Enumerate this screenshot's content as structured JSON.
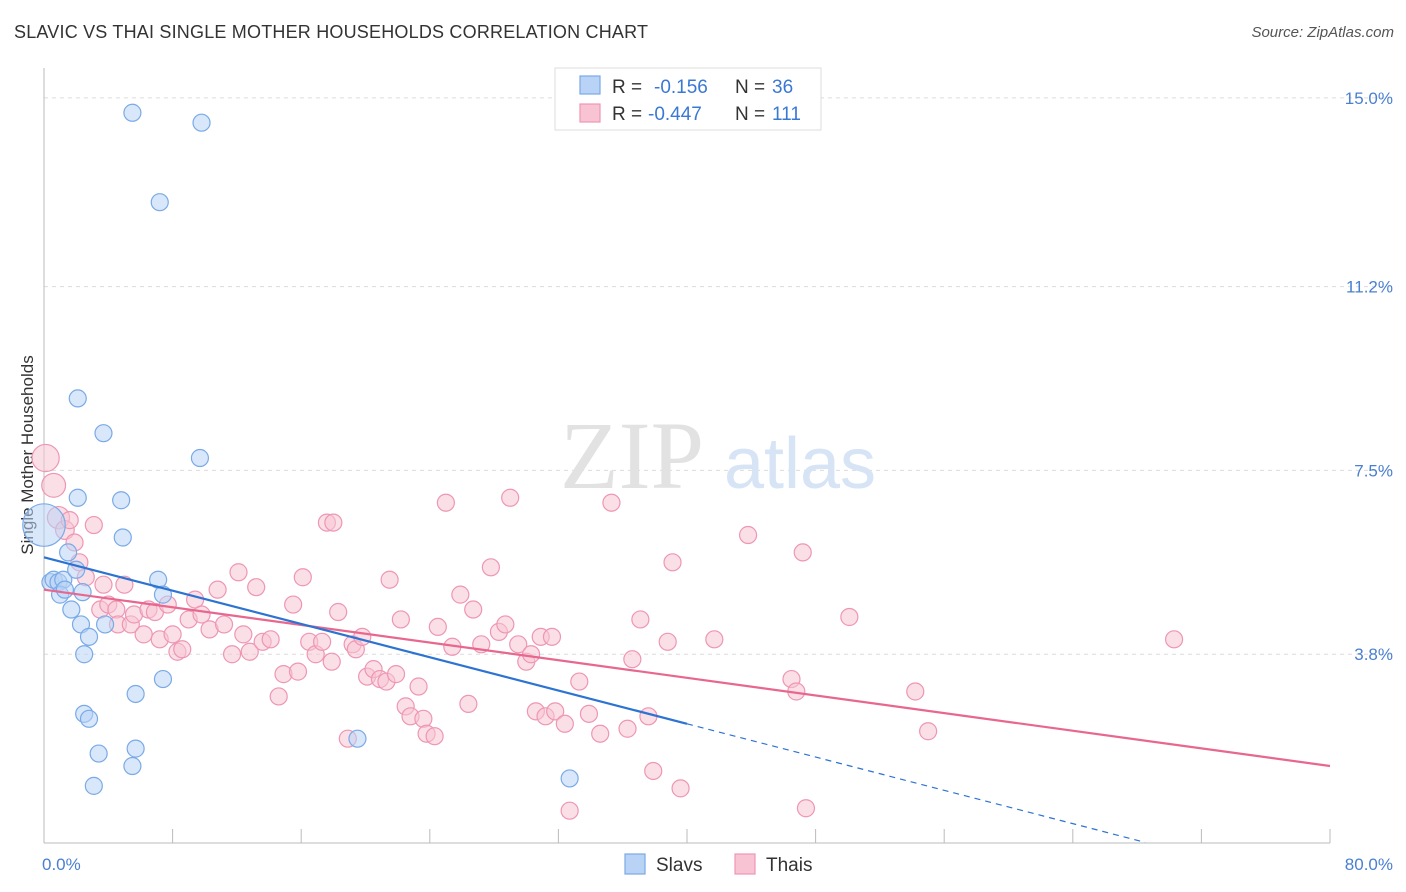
{
  "title": "SLAVIC VS THAI SINGLE MOTHER HOUSEHOLDS CORRELATION CHART",
  "source": "Source: ZipAtlas.com",
  "watermark": {
    "zip": "ZIP",
    "atlas": "atlas"
  },
  "colors": {
    "slavs_fill": "#b8d3f5",
    "slavs_stroke": "#7aaae6",
    "slavs_line": "#2c73d2",
    "thais_fill": "#f8c4d4",
    "thais_stroke": "#ee96b3",
    "thais_line": "#e8678f",
    "tick_text": "#4a80d0",
    "grid": "#dcdcdc"
  },
  "legend": {
    "r_label": "R =",
    "n_label": "N =",
    "rows": [
      {
        "r": "-0.156",
        "n": "36"
      },
      {
        "r": "-0.447",
        "n": "111"
      }
    ]
  },
  "bottom_legend": [
    "Slavs",
    "Thais"
  ],
  "chart_data": {
    "type": "scatter",
    "title": "SLAVIC VS THAI SINGLE MOTHER HOUSEHOLDS CORRELATION CHART",
    "xlabel": "",
    "ylabel": "Single Mother Households",
    "xlim": [
      0,
      80
    ],
    "ylim": [
      0,
      15.4
    ],
    "x_tick_labels": [
      "0.0%",
      "80.0%"
    ],
    "y_ticks": [
      3.8,
      7.5,
      11.2,
      15.0
    ],
    "y_tick_labels": [
      "3.8%",
      "7.5%",
      "11.2%",
      "15.0%"
    ],
    "grid": true,
    "legend_position": "top-center",
    "series": [
      {
        "name": "Slavs",
        "r": -0.156,
        "n": 36,
        "trend": {
          "x0": 0,
          "y0": 5.75,
          "x1": 40,
          "y1": 2.4,
          "dashed_to_x": 68.5
        },
        "points": [
          [
            0,
            6.4,
            2.5
          ],
          [
            0.4,
            5.25,
            1
          ],
          [
            0.6,
            5.3,
            1
          ],
          [
            0.9,
            5.25,
            1
          ],
          [
            1.2,
            5.3,
            1
          ],
          [
            1.0,
            5.0,
            1
          ],
          [
            1.3,
            5.1,
            1
          ],
          [
            1.5,
            5.85,
            1
          ],
          [
            1.7,
            4.7,
            1
          ],
          [
            2.0,
            5.5,
            1
          ],
          [
            2.4,
            5.05,
            1
          ],
          [
            2.1,
            6.95,
            1
          ],
          [
            2.1,
            8.95,
            1
          ],
          [
            3.7,
            8.25,
            1
          ],
          [
            4.8,
            6.9,
            1
          ],
          [
            4.9,
            6.15,
            1
          ],
          [
            2.3,
            4.4,
            1
          ],
          [
            2.5,
            3.8,
            1
          ],
          [
            2.8,
            4.15,
            1
          ],
          [
            3.8,
            4.4,
            1
          ],
          [
            5.5,
            14.7,
            1
          ],
          [
            9.8,
            14.5,
            1
          ],
          [
            7.2,
            12.9,
            1
          ],
          [
            9.7,
            7.75,
            1
          ],
          [
            7.1,
            5.3,
            1
          ],
          [
            7.4,
            5.0,
            1
          ],
          [
            7.4,
            3.3,
            1
          ],
          [
            5.7,
            3.0,
            1
          ],
          [
            2.5,
            2.6,
            1
          ],
          [
            2.8,
            2.5,
            1
          ],
          [
            3.4,
            1.8,
            1
          ],
          [
            5.7,
            1.9,
            1
          ],
          [
            5.5,
            1.55,
            1
          ],
          [
            3.1,
            1.15,
            1
          ],
          [
            19.5,
            2.1,
            1
          ],
          [
            32.7,
            1.3,
            1
          ]
        ]
      },
      {
        "name": "Thais",
        "r": -0.447,
        "n": 111,
        "trend": {
          "x0": 0,
          "y0": 5.1,
          "x1": 80,
          "y1": 1.55
        },
        "points": [
          [
            0.1,
            7.75,
            1.6
          ],
          [
            0.6,
            7.2,
            1.4
          ],
          [
            0.9,
            6.55,
            1.3
          ],
          [
            1.3,
            6.3,
            1.1
          ],
          [
            1.6,
            6.5,
            1
          ],
          [
            1.9,
            6.05,
            1
          ],
          [
            2.2,
            5.65,
            1
          ],
          [
            2.6,
            5.35,
            1
          ],
          [
            3.1,
            6.4,
            1
          ],
          [
            3.5,
            4.7,
            1
          ],
          [
            3.7,
            5.2,
            1
          ],
          [
            4.0,
            4.8,
            1
          ],
          [
            4.5,
            4.7,
            1
          ],
          [
            4.6,
            4.4,
            1
          ],
          [
            5.0,
            5.2,
            1
          ],
          [
            5.4,
            4.4,
            1
          ],
          [
            5.6,
            4.6,
            1
          ],
          [
            6.2,
            4.2,
            1
          ],
          [
            6.5,
            4.7,
            1
          ],
          [
            6.9,
            4.65,
            1
          ],
          [
            7.2,
            4.1,
            1
          ],
          [
            7.7,
            4.8,
            1
          ],
          [
            8.0,
            4.2,
            1
          ],
          [
            8.3,
            3.85,
            1
          ],
          [
            8.6,
            3.9,
            1
          ],
          [
            9.0,
            4.5,
            1
          ],
          [
            9.4,
            4.9,
            1
          ],
          [
            9.8,
            4.6,
            1
          ],
          [
            10.3,
            4.3,
            1
          ],
          [
            10.8,
            5.1,
            1
          ],
          [
            11.2,
            4.4,
            1
          ],
          [
            11.7,
            3.8,
            1
          ],
          [
            12.1,
            5.45,
            1
          ],
          [
            12.4,
            4.2,
            1
          ],
          [
            12.8,
            3.85,
            1
          ],
          [
            13.2,
            5.15,
            1
          ],
          [
            13.6,
            4.05,
            1
          ],
          [
            14.1,
            4.1,
            1
          ],
          [
            14.6,
            2.95,
            1
          ],
          [
            14.9,
            3.4,
            1
          ],
          [
            15.5,
            4.8,
            1
          ],
          [
            15.8,
            3.45,
            1
          ],
          [
            16.1,
            5.35,
            1
          ],
          [
            16.5,
            4.05,
            1
          ],
          [
            16.9,
            3.8,
            1
          ],
          [
            17.3,
            4.05,
            1
          ],
          [
            17.6,
            6.45,
            1
          ],
          [
            18.0,
            6.45,
            1
          ],
          [
            17.9,
            3.65,
            1
          ],
          [
            18.3,
            4.65,
            1
          ],
          [
            18.9,
            2.1,
            1
          ],
          [
            19.2,
            4.0,
            1
          ],
          [
            19.4,
            3.9,
            1
          ],
          [
            19.8,
            4.15,
            1
          ],
          [
            20.1,
            3.35,
            1
          ],
          [
            20.5,
            3.5,
            1
          ],
          [
            20.9,
            3.3,
            1
          ],
          [
            21.3,
            3.25,
            1
          ],
          [
            21.5,
            5.3,
            1
          ],
          [
            21.9,
            3.4,
            1
          ],
          [
            22.2,
            4.5,
            1
          ],
          [
            22.5,
            2.75,
            1
          ],
          [
            22.8,
            2.55,
            1
          ],
          [
            23.3,
            3.15,
            1
          ],
          [
            23.6,
            2.5,
            1
          ],
          [
            23.8,
            2.2,
            1
          ],
          [
            24.3,
            2.15,
            1
          ],
          [
            24.5,
            4.35,
            1
          ],
          [
            25.0,
            6.85,
            1
          ],
          [
            25.4,
            3.95,
            1
          ],
          [
            25.9,
            5.0,
            1
          ],
          [
            26.4,
            2.8,
            1
          ],
          [
            26.7,
            4.7,
            1
          ],
          [
            27.2,
            4.0,
            1
          ],
          [
            27.8,
            5.55,
            1
          ],
          [
            28.3,
            4.25,
            1
          ],
          [
            28.7,
            4.4,
            1
          ],
          [
            29.0,
            6.95,
            1
          ],
          [
            29.5,
            4.0,
            1
          ],
          [
            30.0,
            3.65,
            1
          ],
          [
            30.3,
            3.8,
            1
          ],
          [
            30.6,
            2.65,
            1
          ],
          [
            30.9,
            4.15,
            1
          ],
          [
            31.2,
            2.55,
            1
          ],
          [
            31.8,
            2.65,
            1
          ],
          [
            32.4,
            2.4,
            1
          ],
          [
            31.6,
            4.15,
            1
          ],
          [
            32.7,
            0.65,
            1
          ],
          [
            33.3,
            3.25,
            1
          ],
          [
            33.9,
            2.6,
            1
          ],
          [
            34.6,
            2.2,
            1
          ],
          [
            35.3,
            6.85,
            1
          ],
          [
            36.3,
            2.3,
            1
          ],
          [
            36.6,
            3.7,
            1
          ],
          [
            37.1,
            4.5,
            1
          ],
          [
            37.6,
            2.55,
            1
          ],
          [
            37.9,
            1.45,
            1
          ],
          [
            38.8,
            4.05,
            1
          ],
          [
            39.1,
            5.65,
            1
          ],
          [
            39.6,
            1.1,
            1
          ],
          [
            41.7,
            4.1,
            1
          ],
          [
            43.8,
            6.2,
            1
          ],
          [
            46.5,
            3.3,
            1
          ],
          [
            46.8,
            3.05,
            1
          ],
          [
            47.2,
            5.85,
            1
          ],
          [
            47.4,
            0.7,
            1
          ],
          [
            50.1,
            4.55,
            1
          ],
          [
            54.2,
            3.05,
            1
          ],
          [
            55.0,
            2.25,
            1
          ],
          [
            70.3,
            4.1,
            1
          ]
        ]
      }
    ]
  }
}
